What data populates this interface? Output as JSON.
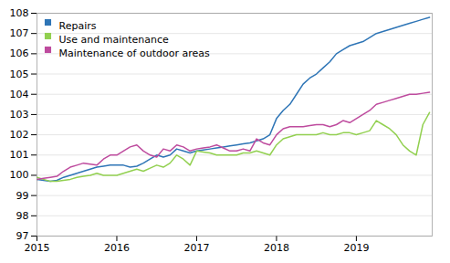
{
  "chart_data": {
    "type": "line",
    "x": [
      2015.0,
      2015.083,
      2015.167,
      2015.25,
      2015.333,
      2015.417,
      2015.5,
      2015.583,
      2015.667,
      2015.75,
      2015.833,
      2015.917,
      2016.0,
      2016.083,
      2016.167,
      2016.25,
      2016.333,
      2016.417,
      2016.5,
      2016.583,
      2016.667,
      2016.75,
      2016.833,
      2016.917,
      2017.0,
      2017.083,
      2017.167,
      2017.25,
      2017.333,
      2017.417,
      2017.5,
      2017.583,
      2017.667,
      2017.75,
      2017.833,
      2017.917,
      2018.0,
      2018.083,
      2018.167,
      2018.25,
      2018.333,
      2018.417,
      2018.5,
      2018.583,
      2018.667,
      2018.75,
      2018.833,
      2018.917,
      2019.0,
      2019.083,
      2019.167,
      2019.25,
      2019.333,
      2019.417,
      2019.5,
      2019.583,
      2019.667,
      2019.75,
      2019.833,
      2019.917
    ],
    "series": [
      {
        "name": "Repairs",
        "color": "#2E75B6",
        "values": [
          99.8,
          99.75,
          99.7,
          99.75,
          99.9,
          100.0,
          100.1,
          100.2,
          100.3,
          100.4,
          100.45,
          100.5,
          100.5,
          100.5,
          100.4,
          100.45,
          100.6,
          100.8,
          101.0,
          100.9,
          101.0,
          101.3,
          101.2,
          101.1,
          101.2,
          101.25,
          101.3,
          101.35,
          101.4,
          101.45,
          101.5,
          101.55,
          101.6,
          101.7,
          101.8,
          102.0,
          102.8,
          103.2,
          103.5,
          104.0,
          104.5,
          104.8,
          105.0,
          105.3,
          105.6,
          106.0,
          106.2,
          106.4,
          106.5,
          106.6,
          106.8,
          107.0,
          107.1,
          107.2,
          107.3,
          107.4,
          107.5,
          107.6,
          107.7,
          107.8
        ]
      },
      {
        "name": "Use and maintenance",
        "color": "#92D050",
        "values": [
          99.9,
          99.8,
          99.7,
          99.7,
          99.75,
          99.8,
          99.9,
          99.95,
          100.0,
          100.1,
          100.0,
          100.0,
          100.0,
          100.1,
          100.2,
          100.3,
          100.2,
          100.35,
          100.5,
          100.4,
          100.6,
          101.0,
          100.8,
          100.5,
          101.2,
          101.15,
          101.1,
          101.0,
          101.0,
          101.0,
          101.0,
          101.1,
          101.1,
          101.2,
          101.1,
          101.0,
          101.5,
          101.8,
          101.9,
          102.0,
          102.0,
          102.0,
          102.0,
          102.1,
          102.0,
          102.0,
          102.1,
          102.1,
          102.0,
          102.1,
          102.2,
          102.7,
          102.5,
          102.3,
          102.0,
          101.5,
          101.2,
          101.0,
          102.5,
          103.1
        ]
      },
      {
        "name": "Maintenance of outdoor areas",
        "color": "#BE4B9E",
        "values": [
          99.8,
          99.85,
          99.9,
          99.95,
          100.2,
          100.4,
          100.5,
          100.6,
          100.55,
          100.5,
          100.8,
          101.0,
          101.0,
          101.2,
          101.4,
          101.5,
          101.2,
          101.0,
          100.9,
          101.3,
          101.2,
          101.5,
          101.4,
          101.2,
          101.3,
          101.35,
          101.4,
          101.5,
          101.35,
          101.2,
          101.2,
          101.3,
          101.2,
          101.8,
          101.6,
          101.5,
          102.0,
          102.3,
          102.4,
          102.4,
          102.4,
          102.45,
          102.5,
          102.5,
          102.4,
          102.5,
          102.7,
          102.6,
          102.8,
          103.0,
          103.2,
          103.5,
          103.6,
          103.7,
          103.8,
          103.9,
          104.0,
          104.0,
          104.05,
          104.1
        ]
      }
    ],
    "xlim": [
      2015.0,
      2019.95
    ],
    "xticks": [
      2015,
      2016,
      2017,
      2018,
      2019
    ],
    "ylim": [
      97,
      108
    ],
    "yticks": [
      97,
      98,
      99,
      100,
      101,
      102,
      103,
      104,
      105,
      106,
      107,
      108
    ],
    "grid": true,
    "legend": "upper left"
  }
}
